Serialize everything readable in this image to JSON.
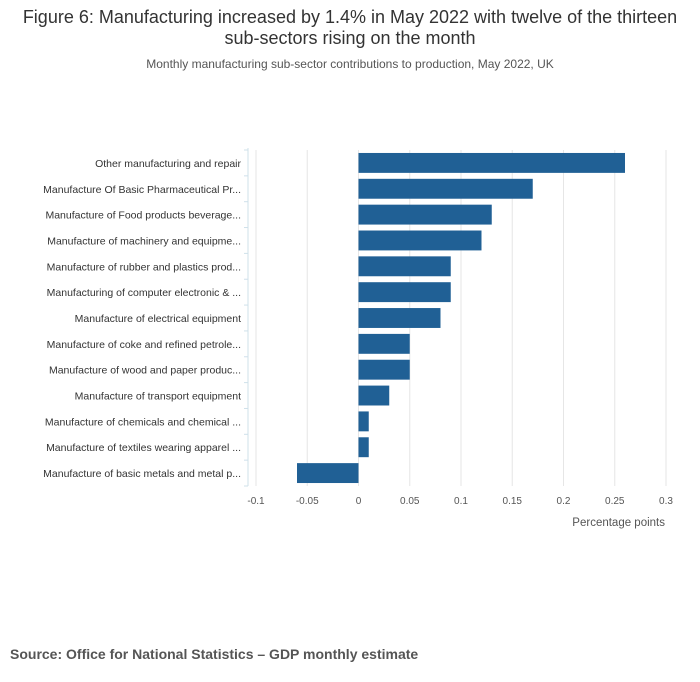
{
  "header": {
    "title": "Figure 6: Manufacturing increased by 1.4% in May 2022 with twelve of the thirteen sub-sectors rising on the month",
    "subtitle": "Monthly manufacturing sub-sector contributions to production, May 2022, UK"
  },
  "chart_data": {
    "type": "bar",
    "orientation": "horizontal",
    "title": "Figure 6: Manufacturing increased by 1.4% in May 2022 with twelve of the thirteen sub-sectors rising on the month",
    "subtitle": "Monthly manufacturing sub-sector contributions to production, May 2022, UK",
    "categories": [
      "Other manufacturing and repair",
      "Manufacture Of Basic Pharmaceutical Pr...",
      "Manufacture of Food products beverage...",
      "Manufacture of machinery and equipme...",
      "Manufacture of rubber and plastics prod...",
      "Manufacturing of computer electronic & ...",
      "Manufacture of electrical equipment",
      "Manufacture of coke and refined petrole...",
      "Manufacture of wood and paper produc...",
      "Manufacture of transport equipment",
      "Manufacture of chemicals and chemical ...",
      "Manufacture of textiles wearing apparel ...",
      "Manufacture of basic metals and metal p..."
    ],
    "values": [
      0.26,
      0.17,
      0.13,
      0.12,
      0.09,
      0.09,
      0.08,
      0.05,
      0.05,
      0.03,
      0.01,
      0.01,
      -0.06
    ],
    "xlabel": "Percentage points",
    "ylabel": "",
    "xlim": [
      -0.1,
      0.3
    ],
    "xticks": [
      -0.1,
      -0.05,
      0,
      0.05,
      0.1,
      0.15,
      0.2,
      0.25,
      0.3
    ],
    "xtick_labels": [
      "-0.1",
      "-0.05",
      "0",
      "0.05",
      "0.1",
      "0.15",
      "0.2",
      "0.25",
      "0.3"
    ],
    "grid": true,
    "bar_color": "#206095"
  },
  "footer": {
    "source": "Source: Office for National Statistics – GDP monthly estimate"
  }
}
